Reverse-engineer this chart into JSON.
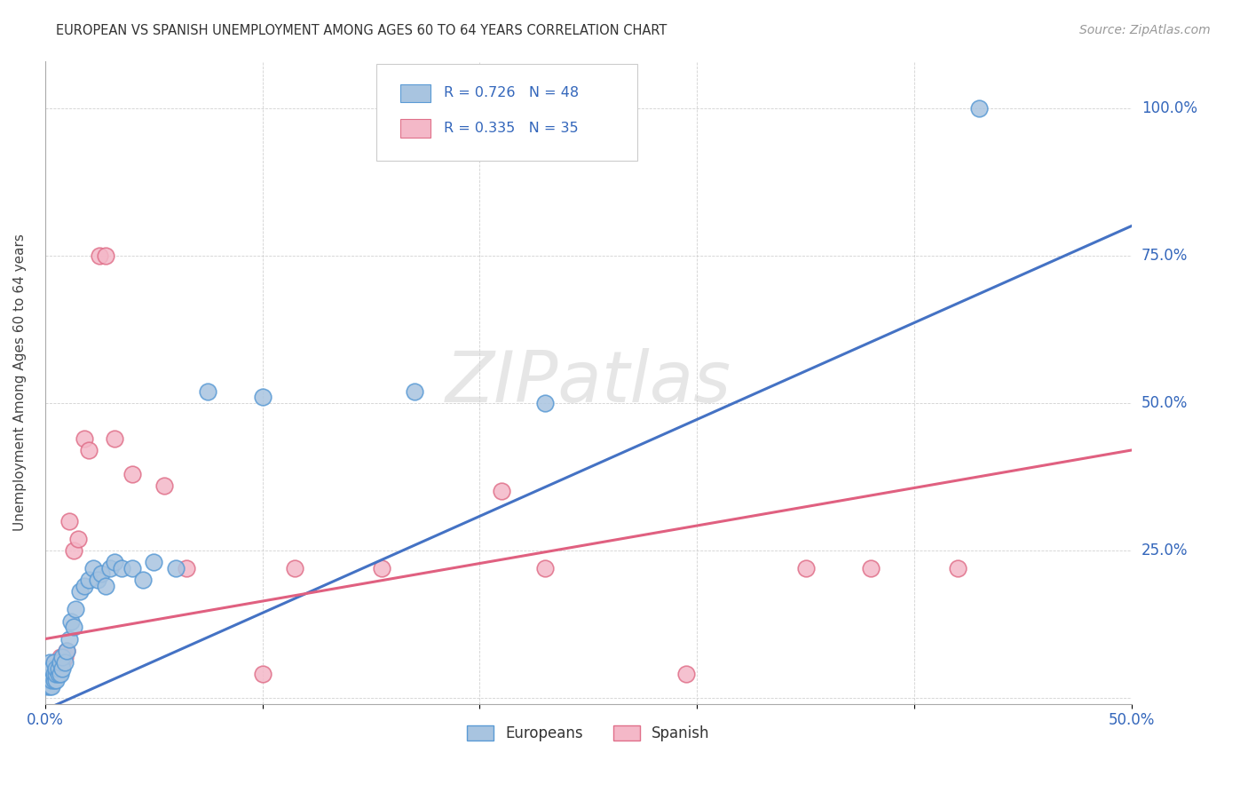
{
  "title": "EUROPEAN VS SPANISH UNEMPLOYMENT AMONG AGES 60 TO 64 YEARS CORRELATION CHART",
  "source": "Source: ZipAtlas.com",
  "ylabel": "Unemployment Among Ages 60 to 64 years",
  "xlim": [
    0.0,
    0.5
  ],
  "ylim": [
    -0.01,
    1.08
  ],
  "xticks": [
    0.0,
    0.1,
    0.2,
    0.3,
    0.4,
    0.5
  ],
  "yticks": [
    0.0,
    0.25,
    0.5,
    0.75,
    1.0
  ],
  "xticklabels": [
    "0.0%",
    "",
    "",
    "",
    "",
    "50.0%"
  ],
  "yticklabels": [
    "",
    "25.0%",
    "50.0%",
    "75.0%",
    "100.0%"
  ],
  "european_color": "#A8C4E0",
  "european_edge_color": "#5B9BD5",
  "spanish_color": "#F4B8C8",
  "spanish_edge_color": "#E0708A",
  "european_line_color": "#4472C4",
  "spanish_line_color": "#E06080",
  "watermark": "ZIPatlas",
  "legend_r_eu": "R = 0.726",
  "legend_n_eu": "N = 48",
  "legend_r_sp": "R = 0.335",
  "legend_n_sp": "N = 35",
  "eu_regression_x0": 0.0,
  "eu_regression_y0": -0.02,
  "eu_regression_x1": 0.5,
  "eu_regression_y1": 0.8,
  "sp_regression_x0": 0.0,
  "sp_regression_y0": 0.1,
  "sp_regression_x1": 0.5,
  "sp_regression_y1": 0.42,
  "european_x": [
    0.001,
    0.001,
    0.001,
    0.002,
    0.002,
    0.002,
    0.002,
    0.002,
    0.003,
    0.003,
    0.003,
    0.004,
    0.004,
    0.004,
    0.005,
    0.005,
    0.005,
    0.006,
    0.006,
    0.007,
    0.007,
    0.008,
    0.008,
    0.009,
    0.01,
    0.011,
    0.012,
    0.013,
    0.014,
    0.016,
    0.018,
    0.02,
    0.022,
    0.024,
    0.026,
    0.028,
    0.03,
    0.032,
    0.035,
    0.04,
    0.045,
    0.05,
    0.06,
    0.075,
    0.1,
    0.17,
    0.23,
    0.43
  ],
  "european_y": [
    0.02,
    0.03,
    0.04,
    0.02,
    0.03,
    0.04,
    0.05,
    0.06,
    0.02,
    0.03,
    0.05,
    0.03,
    0.04,
    0.06,
    0.03,
    0.04,
    0.05,
    0.04,
    0.05,
    0.04,
    0.06,
    0.05,
    0.07,
    0.06,
    0.08,
    0.1,
    0.13,
    0.12,
    0.15,
    0.18,
    0.19,
    0.2,
    0.22,
    0.2,
    0.21,
    0.19,
    0.22,
    0.23,
    0.22,
    0.22,
    0.2,
    0.23,
    0.22,
    0.52,
    0.51,
    0.52,
    0.5,
    1.0
  ],
  "spanish_x": [
    0.001,
    0.001,
    0.001,
    0.002,
    0.002,
    0.002,
    0.003,
    0.003,
    0.004,
    0.005,
    0.006,
    0.007,
    0.008,
    0.009,
    0.01,
    0.011,
    0.013,
    0.015,
    0.018,
    0.02,
    0.025,
    0.028,
    0.032,
    0.04,
    0.055,
    0.065,
    0.1,
    0.115,
    0.155,
    0.21,
    0.23,
    0.295,
    0.35,
    0.38,
    0.42
  ],
  "spanish_y": [
    0.03,
    0.04,
    0.05,
    0.03,
    0.04,
    0.05,
    0.04,
    0.05,
    0.06,
    0.05,
    0.06,
    0.07,
    0.06,
    0.07,
    0.08,
    0.3,
    0.25,
    0.27,
    0.44,
    0.42,
    0.75,
    0.75,
    0.44,
    0.38,
    0.36,
    0.22,
    0.04,
    0.22,
    0.22,
    0.35,
    0.22,
    0.04,
    0.22,
    0.22,
    0.22
  ],
  "figsize": [
    14.06,
    8.92
  ],
  "dpi": 100
}
